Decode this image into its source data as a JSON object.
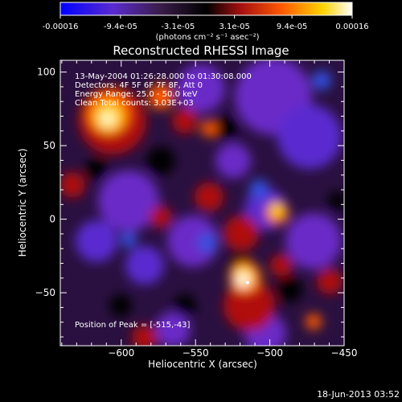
{
  "chart_data": {
    "type": "heatmap",
    "title": "Reconstructed RHESSI Image",
    "xlabel": "Heliocentric X (arcsec)",
    "ylabel": "Heliocentric Y (arcsec)",
    "xlim": [
      -641,
      -450
    ],
    "ylim": [
      -86,
      108
    ],
    "x_ticks": [
      -600,
      -550,
      -500,
      -450
    ],
    "y_ticks": [
      100,
      50,
      0,
      -50
    ],
    "colorbar": {
      "range": [
        -0.00016,
        0.00016
      ],
      "tick_values": [
        -0.00016,
        -9.4e-05,
        -3.1e-05,
        3.1e-05,
        9.4e-05,
        0.00016
      ],
      "tick_labels": [
        "-0.00016",
        "-9.4e-05",
        "-3.1e-05",
        "3.1e-05",
        "9.4e-05",
        "0.00016"
      ],
      "units_label": "(photons cm⁻² s⁻¹ asec⁻²)",
      "colormap_stops": [
        "#0000ff",
        "#6a2cc8",
        "#3b1d4a",
        "#000000",
        "#a81010",
        "#ff6a00",
        "#ffd400",
        "#ffffff"
      ]
    },
    "annotations": [
      "13-May-2004 01:26:28.000 to 01:30:08.000",
      "Detectors: 4F 5F 6F 7F 8F, Att 0",
      "Energy Range: 25.0 - 50.0 keV",
      "Clean     Total counts: 3.03E+03"
    ],
    "peak_label": "Position of Peak = [-515,-43]",
    "peak_position": [
      -515,
      -43
    ],
    "footer_date": "18-Jun-2013 03:52"
  }
}
